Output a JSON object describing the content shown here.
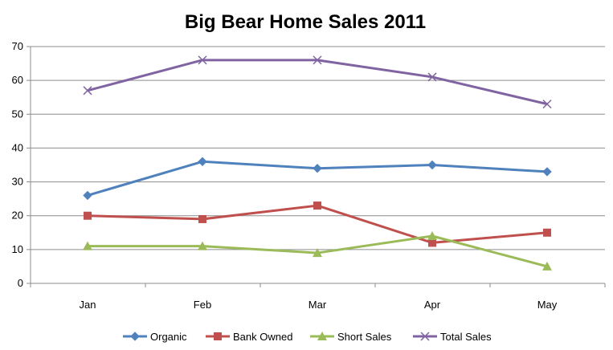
{
  "chart_data": {
    "type": "line",
    "title": "Big Bear Home Sales 2011",
    "categories": [
      "Jan",
      "Feb",
      "Mar",
      "Apr",
      "May"
    ],
    "ylim": [
      0,
      70
    ],
    "yticks": [
      0,
      10,
      20,
      30,
      40,
      50,
      60,
      70
    ],
    "grid": true,
    "legend_position": "bottom",
    "series": [
      {
        "name": "Organic",
        "values": [
          26,
          36,
          34,
          35,
          33
        ],
        "color": "#4f81bd",
        "marker": "diamond"
      },
      {
        "name": "Bank Owned",
        "values": [
          20,
          19,
          23,
          12,
          15
        ],
        "color": "#c0504d",
        "marker": "square"
      },
      {
        "name": "Short Sales",
        "values": [
          11,
          11,
          9,
          14,
          5
        ],
        "color": "#9bbb59",
        "marker": "triangle"
      },
      {
        "name": "Total Sales",
        "values": [
          57,
          66,
          66,
          61,
          53
        ],
        "color": "#8064a2",
        "marker": "x"
      }
    ]
  }
}
